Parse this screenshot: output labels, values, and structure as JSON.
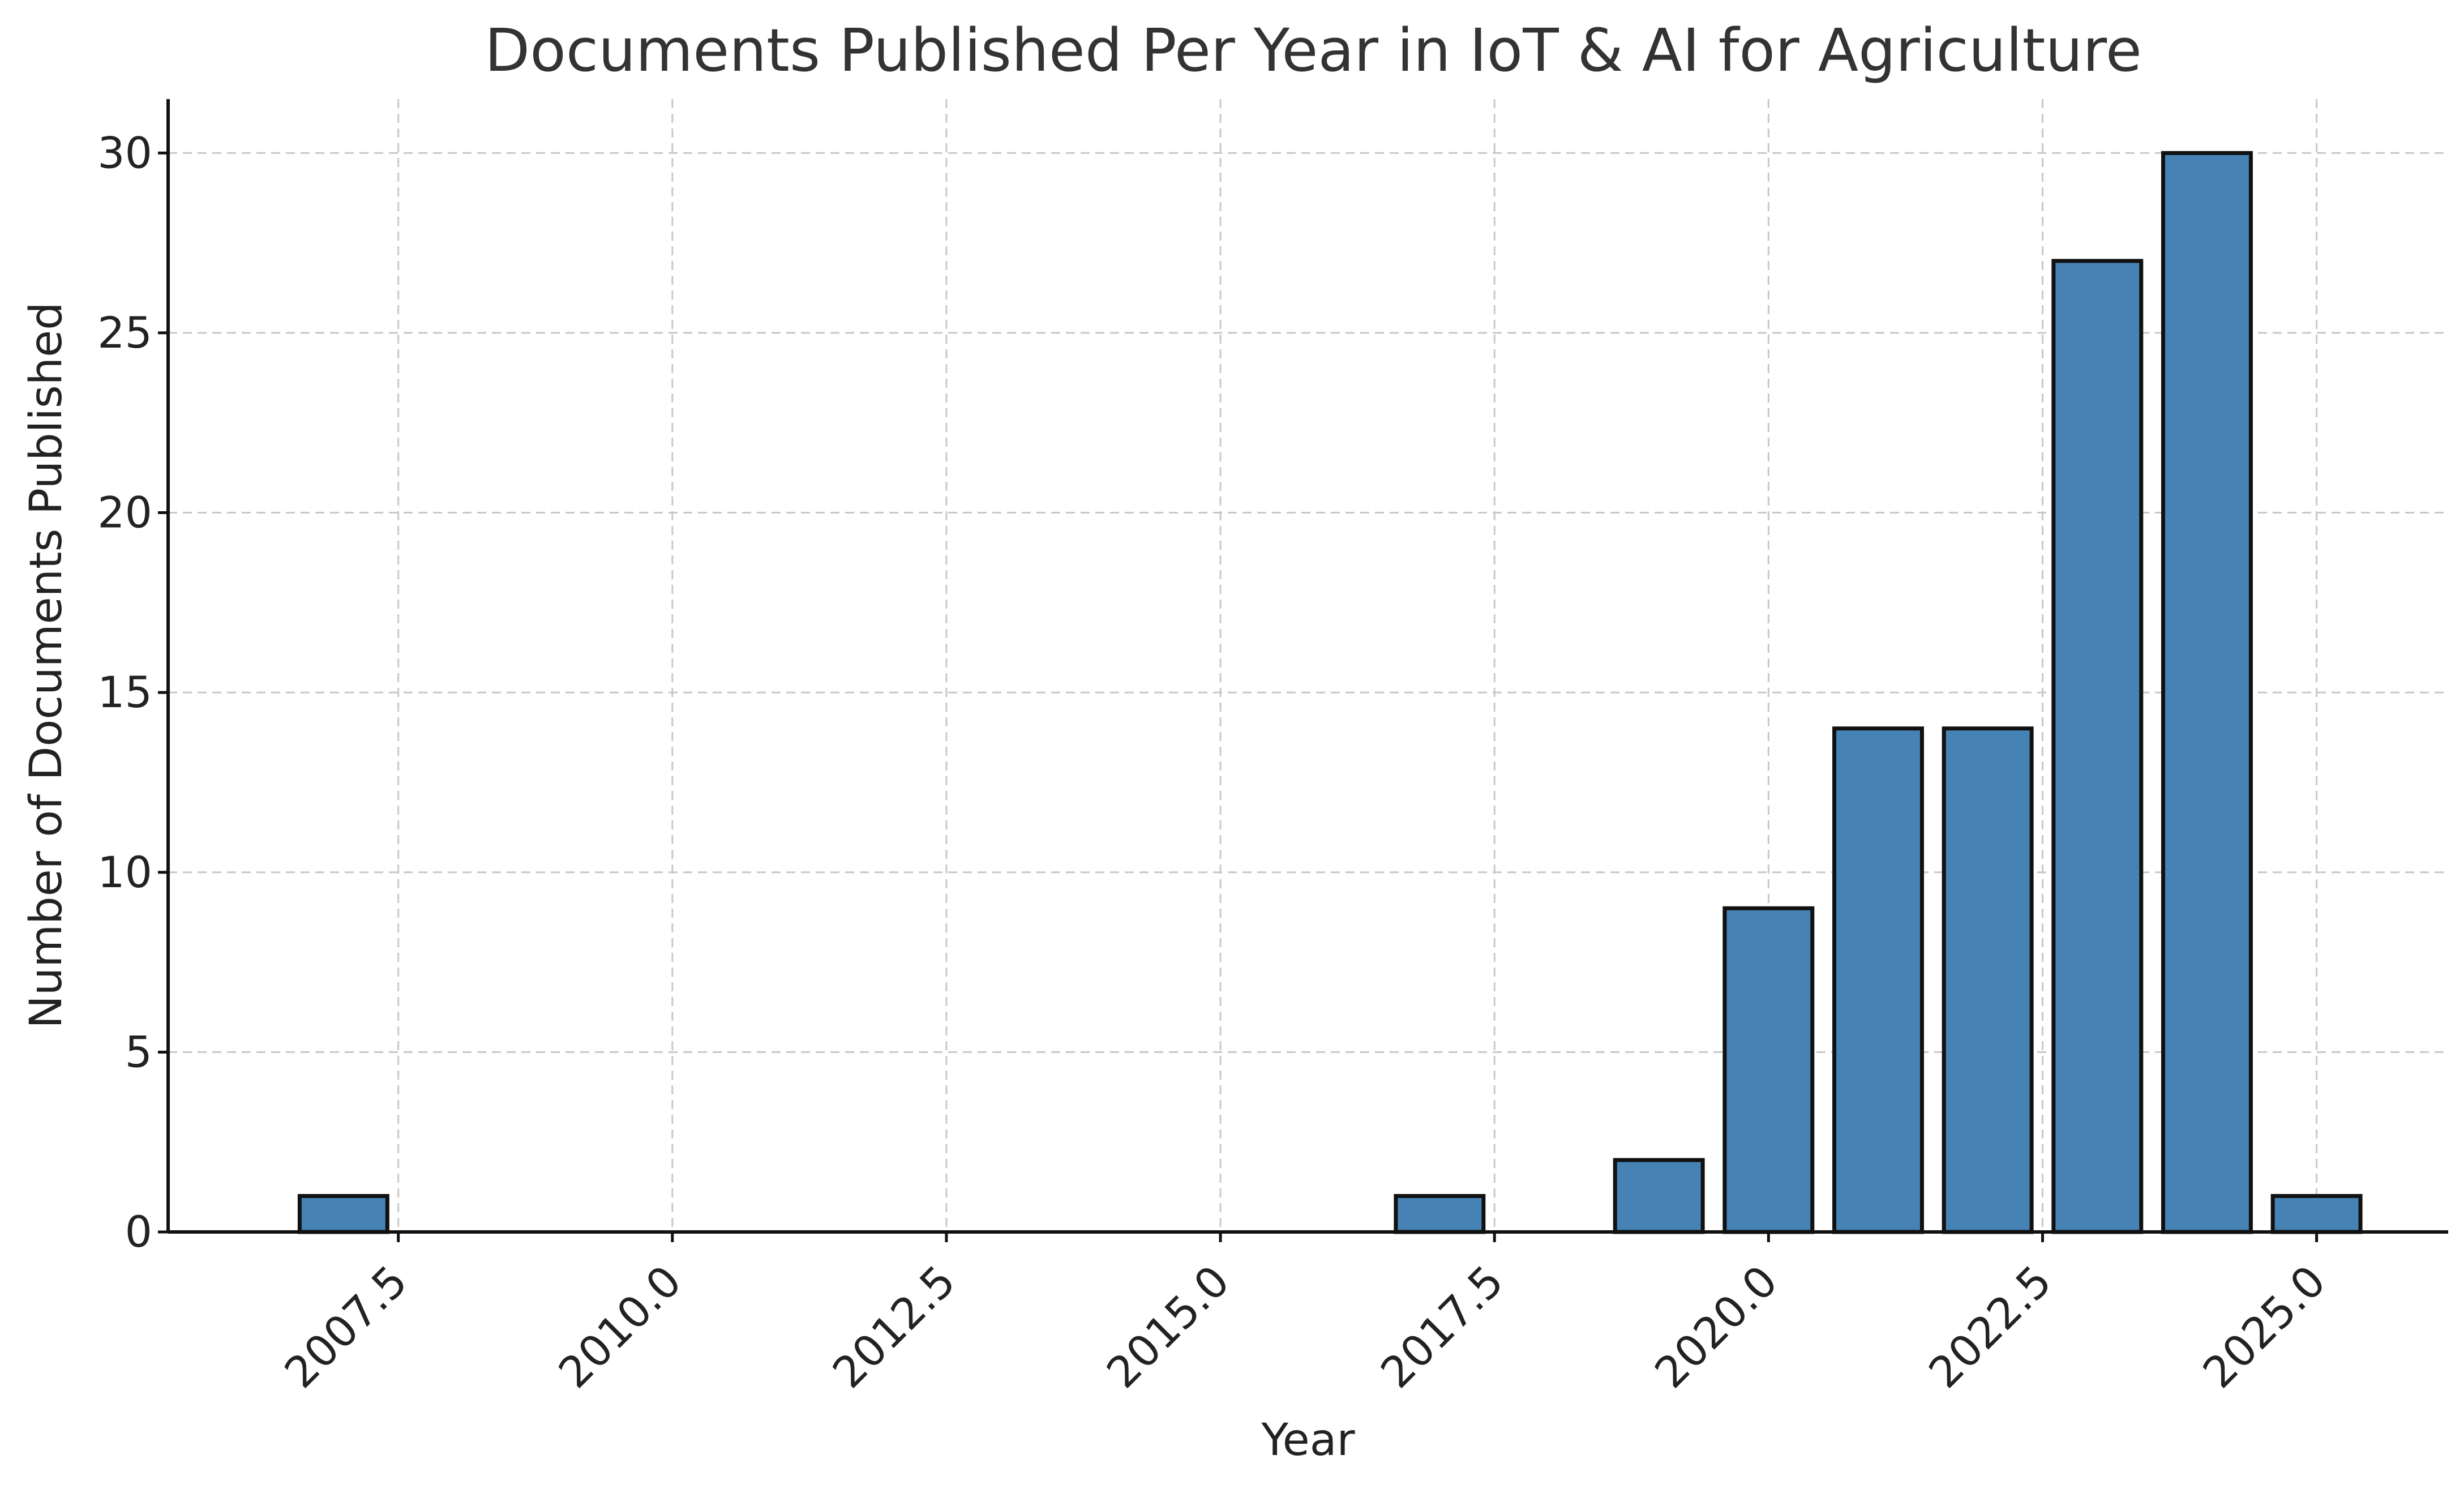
{
  "chart_data": {
    "type": "bar",
    "title": "Documents Published Per Year in IoT & AI for Agriculture",
    "xlabel": "Year",
    "ylabel": "Number of Documents Published",
    "x": [
      2007,
      2017,
      2019,
      2020,
      2021,
      2022,
      2023,
      2024,
      2025
    ],
    "values": [
      1,
      1,
      2,
      9,
      14,
      14,
      27,
      30,
      1
    ],
    "xlim": [
      2005.4,
      2026.2
    ],
    "ylim": [
      0,
      31.5
    ],
    "x_ticks": [
      "2007.5",
      "2010.0",
      "2012.5",
      "2015.0",
      "2017.5",
      "2020.0",
      "2022.5",
      "2025.0"
    ],
    "y_ticks": [
      "0",
      "5",
      "10",
      "15",
      "20",
      "25",
      "30"
    ],
    "grid": true,
    "bar_color": "#4682b4",
    "edge_color": "#111111"
  }
}
